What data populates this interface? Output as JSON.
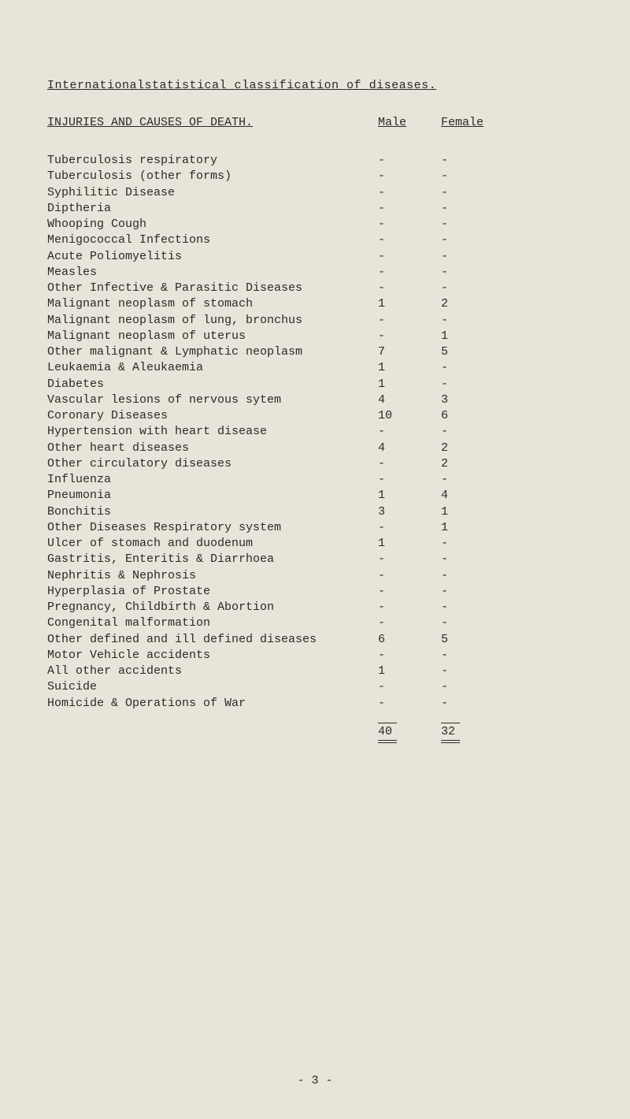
{
  "title": "Internationalstatistical classification of diseases.",
  "header": {
    "label": "INJURIES AND CAUSES OF DEATH.",
    "male": "Male",
    "female": "Female"
  },
  "rows": [
    {
      "cause": "Tuberculosis respiratory",
      "male": "-",
      "female": "-"
    },
    {
      "cause": "Tuberculosis (other forms)",
      "male": "-",
      "female": "-"
    },
    {
      "cause": "Syphilitic Disease",
      "male": "-",
      "female": "-"
    },
    {
      "cause": "Diptheria",
      "male": "-",
      "female": "-"
    },
    {
      "cause": "Whooping Cough",
      "male": "-",
      "female": "-"
    },
    {
      "cause": "Menigococcal Infections",
      "male": "-",
      "female": "-"
    },
    {
      "cause": "Acute Poliomyelitis",
      "male": "-",
      "female": "-"
    },
    {
      "cause": "Measles",
      "male": "-",
      "female": "-"
    },
    {
      "cause": "Other Infective & Parasitic Diseases",
      "male": "-",
      "female": "-"
    },
    {
      "cause": "Malignant neoplasm of stomach",
      "male": "1",
      "female": "2"
    },
    {
      "cause": "Malignant neoplasm of lung, bronchus",
      "male": "-",
      "female": "-"
    },
    {
      "cause": "Malignant neoplasm of uterus",
      "male": "-",
      "female": "1"
    },
    {
      "cause": "Other malignant & Lymphatic neoplasm",
      "male": "7",
      "female": "5"
    },
    {
      "cause": "Leukaemia & Aleukaemia",
      "male": "1",
      "female": "-"
    },
    {
      "cause": "Diabetes",
      "male": "1",
      "female": "-"
    },
    {
      "cause": "Vascular lesions of nervous sytem",
      "male": "4",
      "female": "3"
    },
    {
      "cause": "Coronary Diseases",
      "male": "10",
      "female": "6"
    },
    {
      "cause": "Hypertension with heart disease",
      "male": "-",
      "female": "-"
    },
    {
      "cause": "Other heart diseases",
      "male": "4",
      "female": "2"
    },
    {
      "cause": "Other circulatory diseases",
      "male": "-",
      "female": "2"
    },
    {
      "cause": "Influenza",
      "male": "-",
      "female": "-"
    },
    {
      "cause": "Pneumonia",
      "male": "1",
      "female": "4"
    },
    {
      "cause": "Bonchitis",
      "male": "3",
      "female": "1"
    },
    {
      "cause": "Other Diseases Respiratory system",
      "male": "-",
      "female": "1"
    },
    {
      "cause": "Ulcer of stomach and duodenum",
      "male": "1",
      "female": "-"
    },
    {
      "cause": "Gastritis, Enteritis & Diarrhoea",
      "male": "-",
      "female": "-"
    },
    {
      "cause": "Nephritis & Nephrosis",
      "male": "-",
      "female": "-"
    },
    {
      "cause": "Hyperplasia of Prostate",
      "male": "-",
      "female": "-"
    },
    {
      "cause": "Pregnancy, Childbirth & Abortion",
      "male": "-",
      "female": "-"
    },
    {
      "cause": "Congenital malformation",
      "male": "-",
      "female": "-"
    },
    {
      "cause": "Other defined and ill defined diseases",
      "male": "6",
      "female": "5"
    },
    {
      "cause": "Motor Vehicle accidents",
      "male": "-",
      "female": "-"
    },
    {
      "cause": "All other accidents",
      "male": "1",
      "female": "-"
    },
    {
      "cause": "Suicide",
      "male": "-",
      "female": "-"
    },
    {
      "cause": "Homicide & Operations of War",
      "male": "-",
      "female": "-"
    }
  ],
  "totals": {
    "male": "40",
    "female": "32"
  },
  "page_number": "- 3 -"
}
